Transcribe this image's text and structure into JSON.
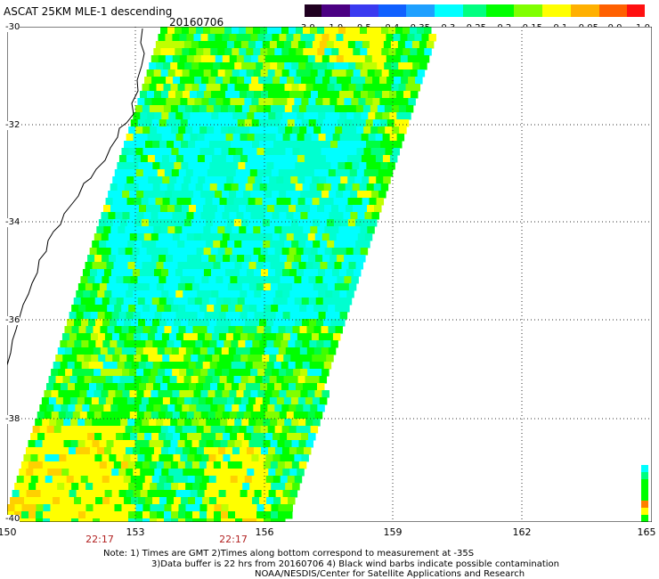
{
  "title": "ASCAT 25KM MLE-1 descending",
  "date": "20160706",
  "colorbar": {
    "labels": [
      "-3.0",
      "-1.0",
      "-0.5",
      "-0.4",
      "-0.35",
      "-0.3",
      "-0.25",
      "-0.2",
      "-0.15",
      "-0.1",
      "-0.05",
      "0.0",
      "1.0"
    ],
    "colors": [
      "#200020",
      "#4b0082",
      "#3a3af0",
      "#1060ff",
      "#1ea0ff",
      "#00ffff",
      "#00ff80",
      "#00ff00",
      "#80ff00",
      "#ffff00",
      "#ffb000",
      "#ff6000",
      "#ff1010"
    ]
  },
  "latitude_labels": [
    "-30",
    "-32",
    "-34",
    "-36",
    "-38",
    "-40"
  ],
  "longitude_labels": [
    "150",
    "153",
    "156",
    "159",
    "162",
    "165"
  ],
  "time_labels": [
    "22:17",
    "22:17"
  ],
  "notes": [
    "Note: 1) Times are GMT 2)Times along bottom correspond to measurement at -35S",
    "3)Data buffer is 22 hrs from 20160706 4) Black wind barbs indicate possible contamination",
    "NOAA/NESDIS/Center for Satellite Applications and Research"
  ],
  "colors": {
    "swath_dominant": "#00ff00",
    "swath_secondary": "#00ffff",
    "swath_highlight": "#ffff00",
    "coastline": "#000000",
    "time_labels": "#b22222"
  }
}
